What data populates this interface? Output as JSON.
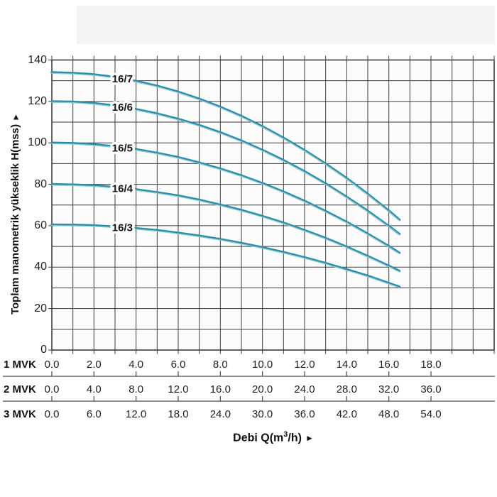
{
  "labels": {
    "y_title": "Toplam manometrik yükseklik H(mss)",
    "x_title_prefix": "Debi Q(m",
    "x_title_sup": "3",
    "x_title_suffix": "/h)",
    "arrow_right": "►"
  },
  "colors": {
    "curve": "#2a8da9",
    "curve_highlight": "#93d3dd",
    "grid": "#3d3d3d",
    "plot_bg": "#fcfcfc",
    "text": "#1d1d1d",
    "band": "#f3f3f3"
  },
  "chart_data": {
    "type": "line",
    "title": "",
    "ylabel": "Toplam manometrik yükseklik H(mss)",
    "xlabel": "Debi Q(m3/h)",
    "ylim": [
      0,
      140
    ],
    "xlim": [
      0,
      21
    ],
    "y_label_step": 20,
    "y_grid_step": 10,
    "x_grid_step": 1.0,
    "yticks": [
      "0",
      "20",
      "40",
      "60",
      "80",
      "100",
      "120",
      "140"
    ],
    "grid": true,
    "legend_position": "labels-on-curves",
    "x": [
      0,
      1,
      2,
      3,
      4,
      5,
      6,
      7,
      8,
      9,
      10,
      11,
      12,
      13,
      14,
      15,
      16,
      16.5
    ],
    "series": [
      {
        "name": "16/7",
        "label_x": 3.35,
        "values": [
          134,
          133.7,
          133,
          131.7,
          129.8,
          127.5,
          124.6,
          121.2,
          117.3,
          112.9,
          107.9,
          102.4,
          96.4,
          89.9,
          82.9,
          75.3,
          67.2,
          62.9
        ]
      },
      {
        "name": "16/6",
        "label_x": 3.35,
        "values": [
          120,
          119.8,
          119.1,
          117.9,
          116.2,
          114.1,
          111.5,
          108.5,
          105.0,
          101.0,
          96.5,
          91.6,
          86.2,
          80.3,
          73.9,
          67.1,
          59.8,
          56.0
        ]
      },
      {
        "name": "16/5",
        "label_x": 3.35,
        "values": [
          100,
          99.8,
          99.2,
          98.2,
          96.9,
          95.1,
          93.0,
          90.4,
          87.5,
          84.2,
          80.5,
          76.4,
          71.9,
          67.0,
          61.8,
          56.1,
          50.1,
          46.9
        ]
      },
      {
        "name": "16/4",
        "label_x": 3.35,
        "values": [
          80,
          79.8,
          79.4,
          78.6,
          77.5,
          76.1,
          74.5,
          72.5,
          70.1,
          67.5,
          64.6,
          61.4,
          57.8,
          54.0,
          49.8,
          45.3,
          40.6,
          38.1
        ]
      },
      {
        "name": "16/3",
        "label_x": 3.35,
        "values": [
          60.5,
          60.4,
          60.1,
          59.5,
          58.7,
          57.8,
          56.5,
          55.1,
          53.5,
          51.6,
          49.5,
          47.2,
          44.7,
          41.9,
          38.9,
          35.8,
          32.3,
          30.5
        ]
      }
    ],
    "x_scales": [
      {
        "label": "1 MVK",
        "ticks": [
          "0.0",
          "2.0",
          "4.0",
          "6.0",
          "8.0",
          "10.0",
          "12.0",
          "14.0",
          "16.0",
          "18.0"
        ]
      },
      {
        "label": "2 MVK",
        "ticks": [
          "0.0",
          "4.0",
          "8.0",
          "12.0",
          "16.0",
          "20.0",
          "24.0",
          "28.0",
          "32.0",
          "36.0"
        ]
      },
      {
        "label": "3 MVK",
        "ticks": [
          "0.0",
          "6.0",
          "12.0",
          "18.0",
          "24.0",
          "30.0",
          "36.0",
          "42.0",
          "48.0",
          "54.0"
        ]
      }
    ]
  }
}
